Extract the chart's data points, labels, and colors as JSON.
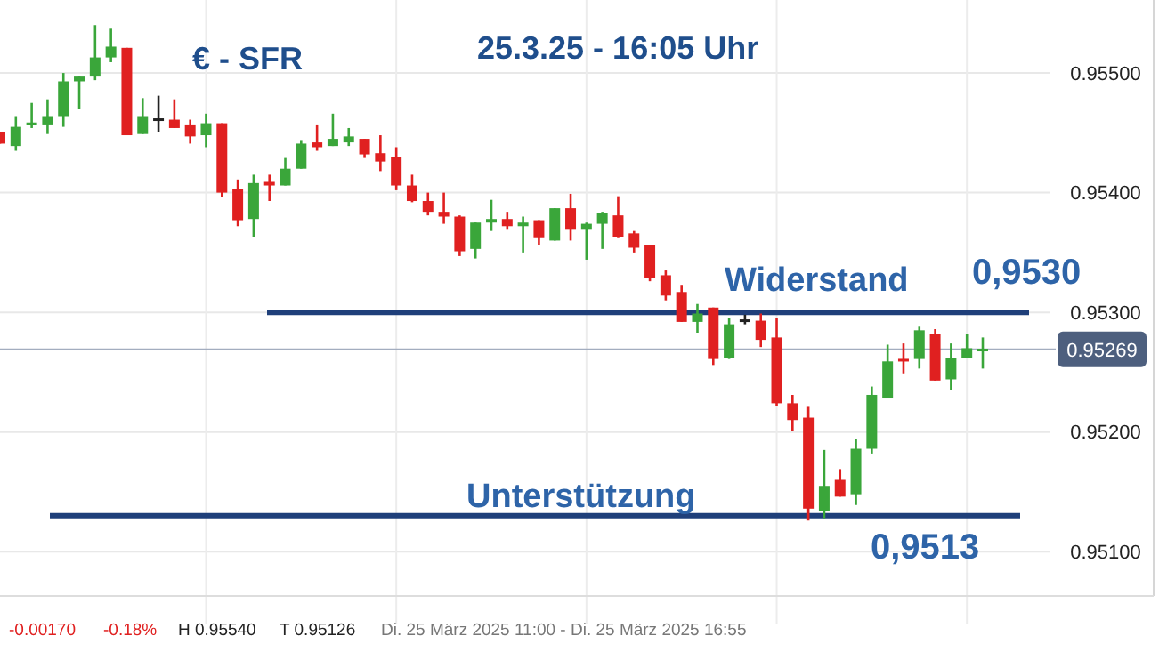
{
  "chart_data": {
    "type": "candlestick",
    "title": "€ - SFR",
    "subtitle": "25.3.25 - 16:05 Uhr",
    "categories": [
      null,
      null,
      null,
      null,
      null,
      null,
      null,
      null,
      null,
      null,
      null,
      null,
      null,
      null,
      null,
      null,
      null,
      null,
      null,
      null,
      null,
      null,
      null,
      null,
      null,
      null,
      null,
      null,
      null,
      null,
      null,
      null,
      null,
      null,
      null,
      null,
      null,
      null,
      null,
      null,
      null,
      null,
      null,
      null,
      null,
      null,
      null,
      null,
      null,
      null,
      null,
      null,
      null,
      null,
      null,
      null,
      null,
      null,
      null,
      null,
      null,
      null,
      null
    ],
    "ohlc": [
      [
        0.95451,
        0.95451,
        0.95441,
        0.95441
      ],
      [
        0.95439,
        0.95464,
        0.95435,
        0.95455
      ],
      [
        0.95457,
        0.95475,
        0.95454,
        0.95458
      ],
      [
        0.95457,
        0.95478,
        0.95449,
        0.95464
      ],
      [
        0.95464,
        0.955,
        0.95455,
        0.95493
      ],
      [
        0.95493,
        0.95497,
        0.9547,
        0.95497
      ],
      [
        0.95497,
        0.9554,
        0.95494,
        0.95513
      ],
      [
        0.95513,
        0.95537,
        0.95509,
        0.95522
      ],
      [
        0.95521,
        0.95521,
        0.95448,
        0.95448
      ],
      [
        0.95449,
        0.95479,
        0.95449,
        0.95464
      ],
      [
        0.95461,
        0.95481,
        0.95451,
        0.95461
      ],
      [
        0.95461,
        0.95478,
        0.95454,
        0.95454
      ],
      [
        0.95457,
        0.95461,
        0.95441,
        0.95447
      ],
      [
        0.95448,
        0.95466,
        0.95438,
        0.95458
      ],
      [
        0.95458,
        0.95458,
        0.95396,
        0.954
      ],
      [
        0.95403,
        0.95411,
        0.95372,
        0.95377
      ],
      [
        0.95378,
        0.95415,
        0.95363,
        0.95408
      ],
      [
        0.95409,
        0.95415,
        0.95393,
        0.95406
      ],
      [
        0.95406,
        0.95429,
        0.95406,
        0.9542
      ],
      [
        0.9542,
        0.95444,
        0.9542,
        0.95441
      ],
      [
        0.95442,
        0.95457,
        0.95435,
        0.95438
      ],
      [
        0.95439,
        0.95466,
        0.95439,
        0.95445
      ],
      [
        0.95442,
        0.95454,
        0.95439,
        0.95447
      ],
      [
        0.95445,
        0.95445,
        0.95429,
        0.95432
      ],
      [
        0.95433,
        0.95448,
        0.95418,
        0.95426
      ],
      [
        0.9543,
        0.95438,
        0.95402,
        0.95406
      ],
      [
        0.95406,
        0.95415,
        0.95392,
        0.95393
      ],
      [
        0.95393,
        0.954,
        0.95381,
        0.95384
      ],
      [
        0.95384,
        0.954,
        0.95374,
        0.9538
      ],
      [
        0.9538,
        0.95381,
        0.95347,
        0.95351
      ],
      [
        0.95353,
        0.95375,
        0.95345,
        0.95375
      ],
      [
        0.95375,
        0.95394,
        0.95368,
        0.95378
      ],
      [
        0.95378,
        0.95384,
        0.95369,
        0.95372
      ],
      [
        0.95372,
        0.9538,
        0.9535,
        0.95375
      ],
      [
        0.95377,
        0.95377,
        0.95356,
        0.95362
      ],
      [
        0.9536,
        0.95387,
        0.9536,
        0.95387
      ],
      [
        0.95387,
        0.95399,
        0.9536,
        0.95369
      ],
      [
        0.95369,
        0.95375,
        0.95344,
        0.95374
      ],
      [
        0.95374,
        0.95384,
        0.95353,
        0.95383
      ],
      [
        0.95381,
        0.95397,
        0.95362,
        0.95363
      ],
      [
        0.95366,
        0.95368,
        0.9535,
        0.95354
      ],
      [
        0.95356,
        0.95356,
        0.95326,
        0.95329
      ],
      [
        0.95331,
        0.95335,
        0.9531,
        0.95314
      ],
      [
        0.95317,
        0.95323,
        0.95292,
        0.95292
      ],
      [
        0.95292,
        0.95307,
        0.95283,
        0.95299
      ],
      [
        0.95304,
        0.95304,
        0.95256,
        0.95261
      ],
      [
        0.95262,
        0.95295,
        0.95261,
        0.9529
      ],
      [
        0.95293,
        0.95298,
        0.9529,
        0.95293
      ],
      [
        0.95293,
        0.95299,
        0.95271,
        0.95277
      ],
      [
        0.95279,
        0.95295,
        0.95222,
        0.95224
      ],
      [
        0.95224,
        0.95231,
        0.95201,
        0.9521
      ],
      [
        0.95212,
        0.95221,
        0.95126,
        0.95136
      ],
      [
        0.95134,
        0.95185,
        0.95128,
        0.95155
      ],
      [
        0.9516,
        0.95169,
        0.95146,
        0.95146
      ],
      [
        0.95148,
        0.95194,
        0.95139,
        0.95186
      ],
      [
        0.95186,
        0.95238,
        0.95182,
        0.95231
      ],
      [
        0.95228,
        0.95273,
        0.95228,
        0.95259
      ],
      [
        0.95261,
        0.95274,
        0.95249,
        0.95259
      ],
      [
        0.95261,
        0.95288,
        0.95253,
        0.95285
      ],
      [
        0.95282,
        0.95286,
        0.95243,
        0.95243
      ],
      [
        0.95244,
        0.95274,
        0.95235,
        0.95262
      ],
      [
        0.95262,
        0.95282,
        0.95262,
        0.9527
      ],
      [
        0.95268,
        0.95279,
        0.95253,
        0.95269
      ]
    ],
    "ylim": [
      0.95063,
      0.95561
    ],
    "yticks": [
      {
        "value": 0.951,
        "label": "0.95100"
      },
      {
        "value": 0.952,
        "label": "0.95200"
      },
      {
        "value": 0.953,
        "label": "0.95300"
      },
      {
        "value": 0.954,
        "label": "0.95400"
      },
      {
        "value": 0.955,
        "label": "0.95500"
      }
    ],
    "tick_labels": "y",
    "grid": true,
    "ref_lines": [
      {
        "axis": "y",
        "value": 0.953,
        "label": "Widerstand",
        "color": "#1f3f7a"
      },
      {
        "axis": "y",
        "value": 0.9513,
        "label": "Unterstützung",
        "color": "#1f3f7a"
      },
      {
        "axis": "y",
        "value": 0.95269,
        "label": "0.95269",
        "color": "#a3adbf"
      }
    ],
    "annotations": [
      {
        "text": "0,9530",
        "y": 0.953
      },
      {
        "text": "0,9513",
        "y": 0.9513
      },
      "-0.00170",
      "-0.18%",
      "H 0.95540",
      "T 0.95126",
      "Di. 25 März 2025 11:00 - Di. 25 März 2025 16:55"
    ]
  }
}
